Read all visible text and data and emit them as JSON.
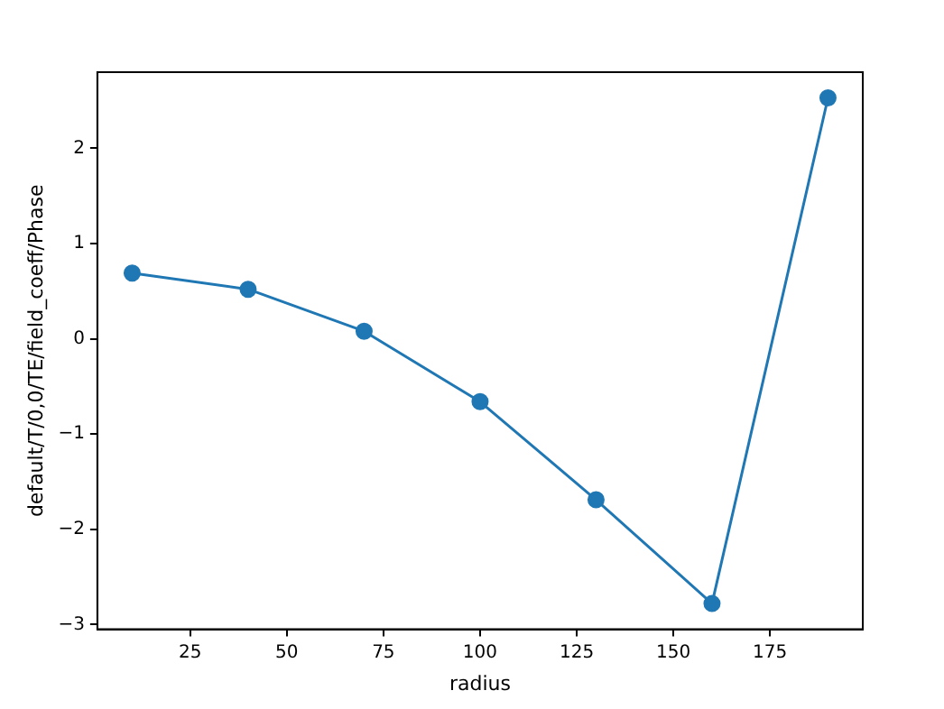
{
  "chart_data": {
    "type": "line",
    "xlabel": "radius",
    "ylabel": "default/T/0,0/TE/field_coeff/Phase",
    "x": [
      10,
      40,
      70,
      100,
      130,
      160,
      190
    ],
    "series": [
      {
        "color": "#1f77b4",
        "values": [
          0.69,
          0.52,
          0.08,
          -0.66,
          -1.69,
          -2.78,
          2.53
        ]
      }
    ],
    "xlim": [
      1,
      199
    ],
    "xticks": [
      25,
      50,
      75,
      100,
      125,
      150,
      175
    ],
    "ylim": [
      -3.05,
      2.8
    ],
    "yticks": [
      {
        "value": -3,
        "label": "−3"
      },
      {
        "value": -2,
        "label": "−2"
      },
      {
        "value": -1,
        "label": "−1"
      },
      0,
      1,
      2
    ],
    "marker": "circle",
    "line_style": "solid",
    "grid": false,
    "legend": false
  }
}
